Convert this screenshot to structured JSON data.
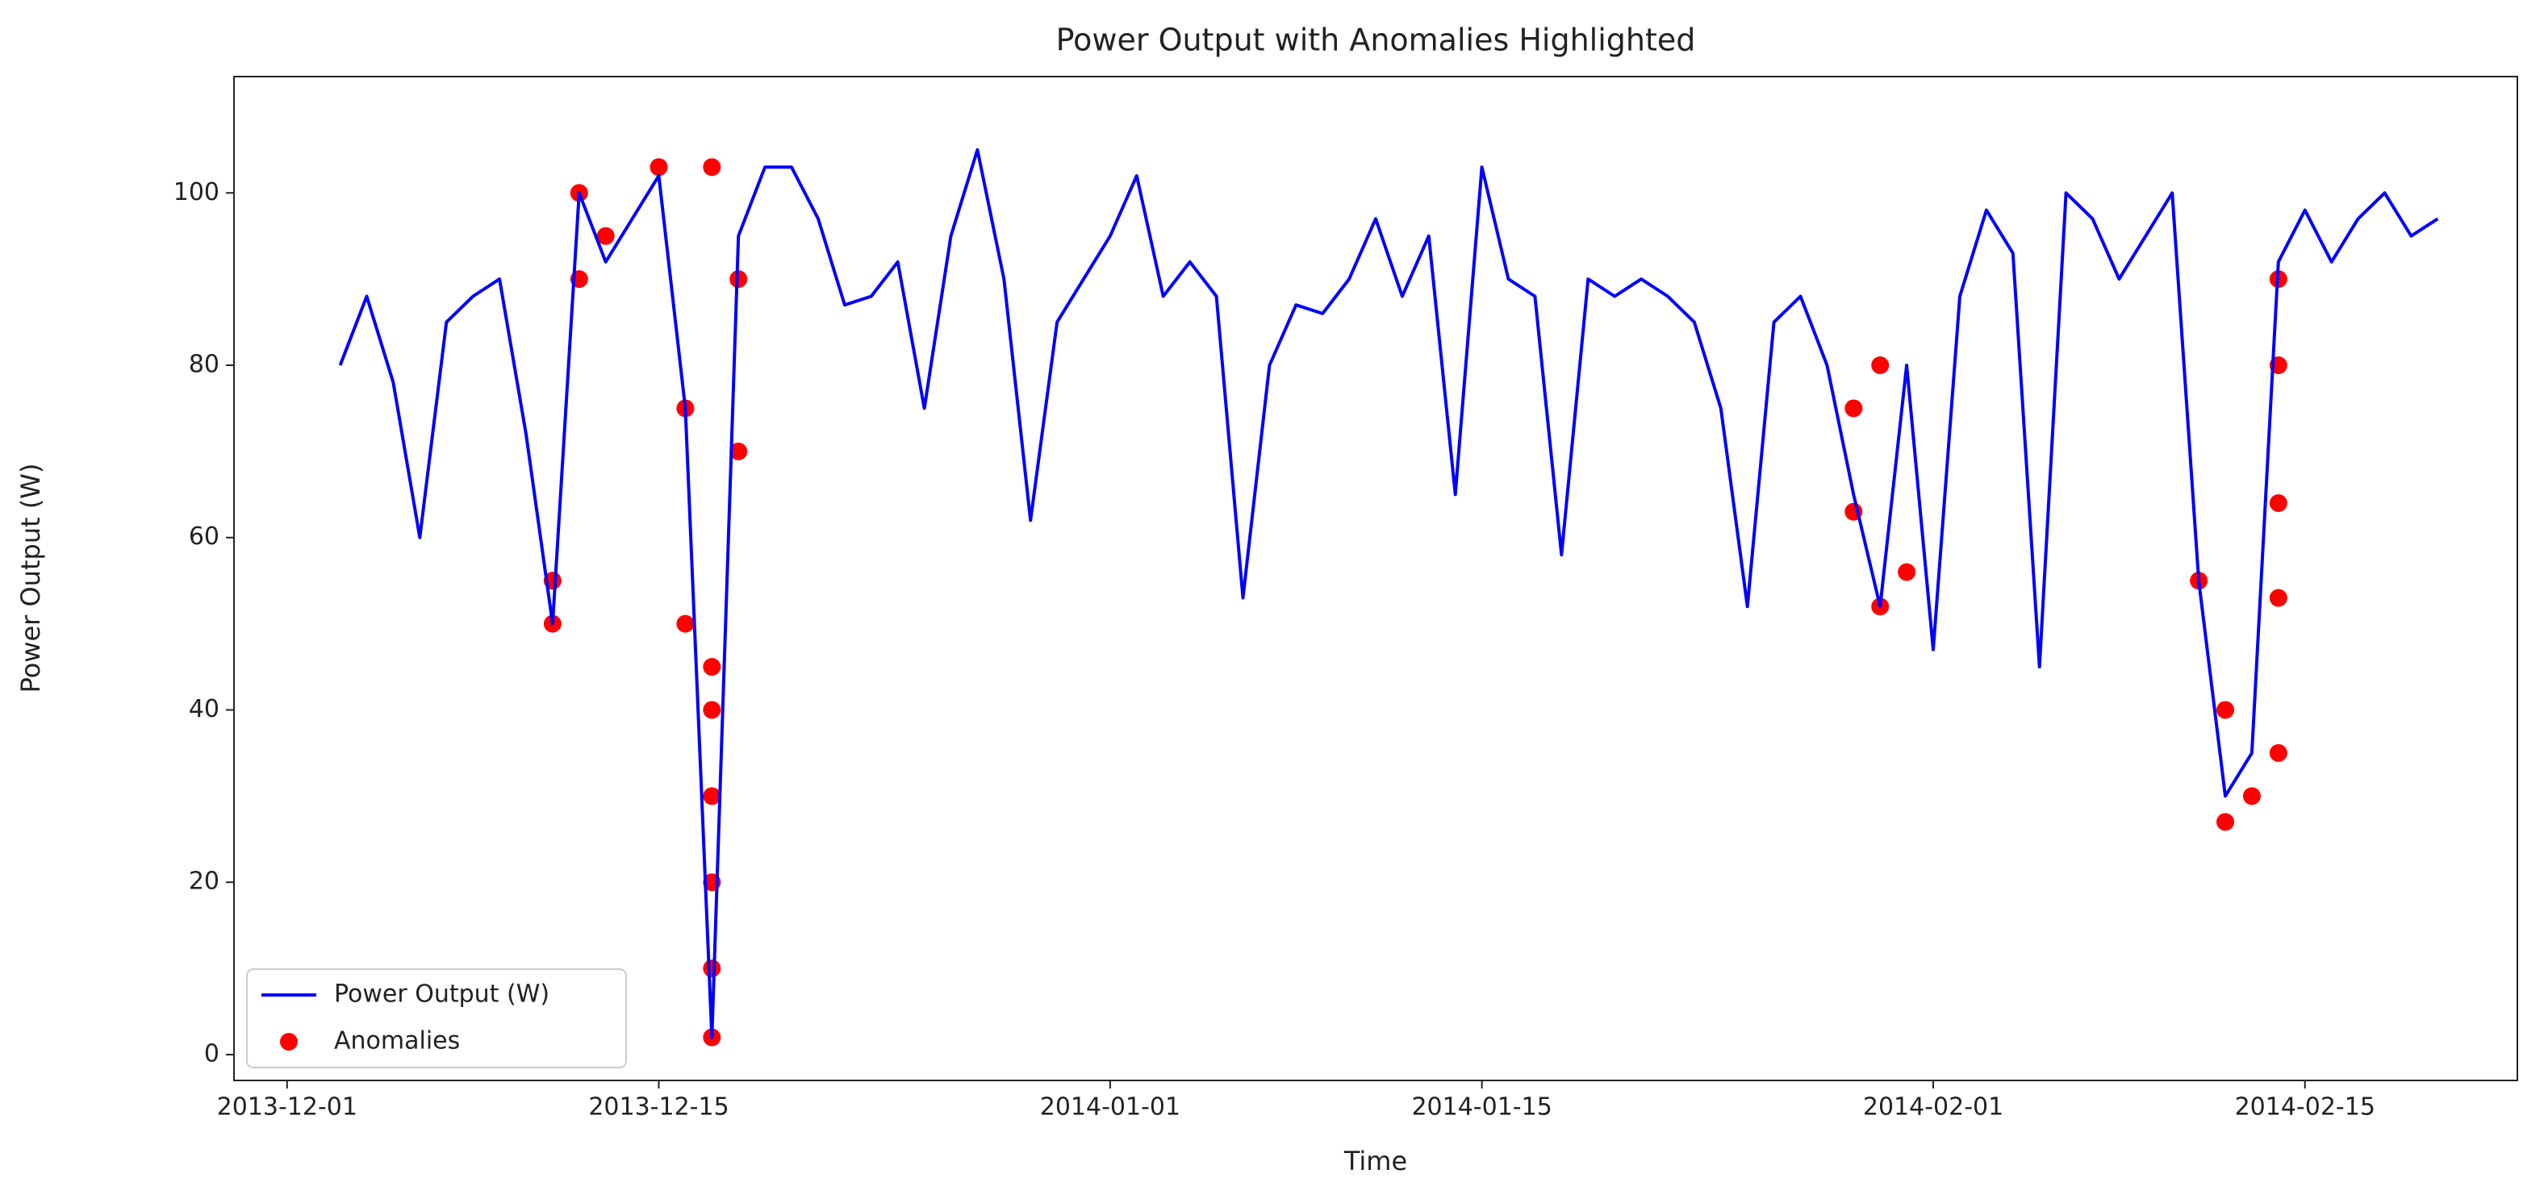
{
  "chart_data": {
    "type": "line",
    "title": "Power Output with Anomalies Highlighted",
    "xlabel": "Time",
    "ylabel": "Power Output (W)",
    "x": [
      "2013-12-03",
      "2013-12-04",
      "2013-12-05",
      "2013-12-06",
      "2013-12-07",
      "2013-12-08",
      "2013-12-09",
      "2013-12-10",
      "2013-12-11",
      "2013-12-12",
      "2013-12-13",
      "2013-12-14",
      "2013-12-15",
      "2013-12-16",
      "2013-12-17",
      "2013-12-18",
      "2013-12-19",
      "2013-12-20",
      "2013-12-21",
      "2013-12-22",
      "2013-12-23",
      "2013-12-24",
      "2013-12-25",
      "2013-12-26",
      "2013-12-27",
      "2013-12-28",
      "2013-12-29",
      "2013-12-30",
      "2013-12-31",
      "2014-01-01",
      "2014-01-02",
      "2014-01-03",
      "2014-01-04",
      "2014-01-05",
      "2014-01-06",
      "2014-01-07",
      "2014-01-08",
      "2014-01-09",
      "2014-01-10",
      "2014-01-11",
      "2014-01-12",
      "2014-01-13",
      "2014-01-14",
      "2014-01-15",
      "2014-01-16",
      "2014-01-17",
      "2014-01-18",
      "2014-01-19",
      "2014-01-20",
      "2014-01-21",
      "2014-01-22",
      "2014-01-23",
      "2014-01-24",
      "2014-01-25",
      "2014-01-26",
      "2014-01-27",
      "2014-01-28",
      "2014-01-29",
      "2014-01-30",
      "2014-01-31",
      "2014-02-01",
      "2014-02-02",
      "2014-02-03",
      "2014-02-04",
      "2014-02-05",
      "2014-02-06",
      "2014-02-07",
      "2014-02-08",
      "2014-02-09",
      "2014-02-10",
      "2014-02-11",
      "2014-02-12",
      "2014-02-13",
      "2014-02-14",
      "2014-02-15",
      "2014-02-16",
      "2014-02-17",
      "2014-02-18",
      "2014-02-19",
      "2014-02-20"
    ],
    "series": [
      {
        "name": "Power Output (W)",
        "type": "line",
        "color": "#0000ff",
        "values": [
          80,
          88,
          78,
          60,
          85,
          88,
          90,
          72,
          50,
          100,
          92,
          97,
          102,
          75,
          2,
          95,
          103,
          103,
          97,
          87,
          88,
          92,
          75,
          95,
          105,
          90,
          62,
          85,
          90,
          95,
          102,
          88,
          92,
          88,
          53,
          80,
          87,
          86,
          90,
          97,
          88,
          95,
          65,
          103,
          90,
          88,
          58,
          90,
          88,
          90,
          88,
          85,
          75,
          52,
          85,
          88,
          80,
          65,
          52,
          80,
          47,
          88,
          98,
          93,
          45,
          100,
          97,
          90,
          95,
          100,
          55,
          30,
          35,
          92,
          98,
          92,
          97,
          100,
          95,
          97
        ]
      },
      {
        "name": "Anomalies",
        "type": "scatter",
        "color": "#ff0000",
        "x": [
          "2013-12-11",
          "2013-12-11",
          "2013-12-12",
          "2013-12-12",
          "2013-12-13",
          "2013-12-15",
          "2013-12-16",
          "2013-12-16",
          "2013-12-17",
          "2013-12-17",
          "2013-12-17",
          "2013-12-17",
          "2013-12-17",
          "2013-12-17",
          "2013-12-17",
          "2013-12-18",
          "2013-12-18",
          "2014-01-29",
          "2014-01-29",
          "2014-01-30",
          "2014-01-30",
          "2014-01-31",
          "2014-02-11",
          "2014-02-12",
          "2014-02-12",
          "2014-02-13",
          "2014-02-14",
          "2014-02-14",
          "2014-02-14",
          "2014-02-14",
          "2014-02-14"
        ],
        "values": [
          50,
          55,
          100,
          90,
          95,
          103,
          75,
          50,
          2,
          10,
          20,
          30,
          40,
          45,
          103,
          70,
          90,
          63,
          75,
          52,
          80,
          56,
          55,
          40,
          27,
          30,
          35,
          53,
          64,
          80,
          90
        ]
      }
    ],
    "xlim": [
      "2013-11-29",
      "2014-02-23"
    ],
    "xticks": [
      "2013-12-01",
      "2013-12-15",
      "2014-01-01",
      "2014-01-15",
      "2014-02-01",
      "2014-02-15"
    ],
    "ylim": [
      -3,
      113.5
    ],
    "yticks": [
      0,
      20,
      40,
      60,
      80,
      100
    ],
    "legend": "lower left"
  }
}
